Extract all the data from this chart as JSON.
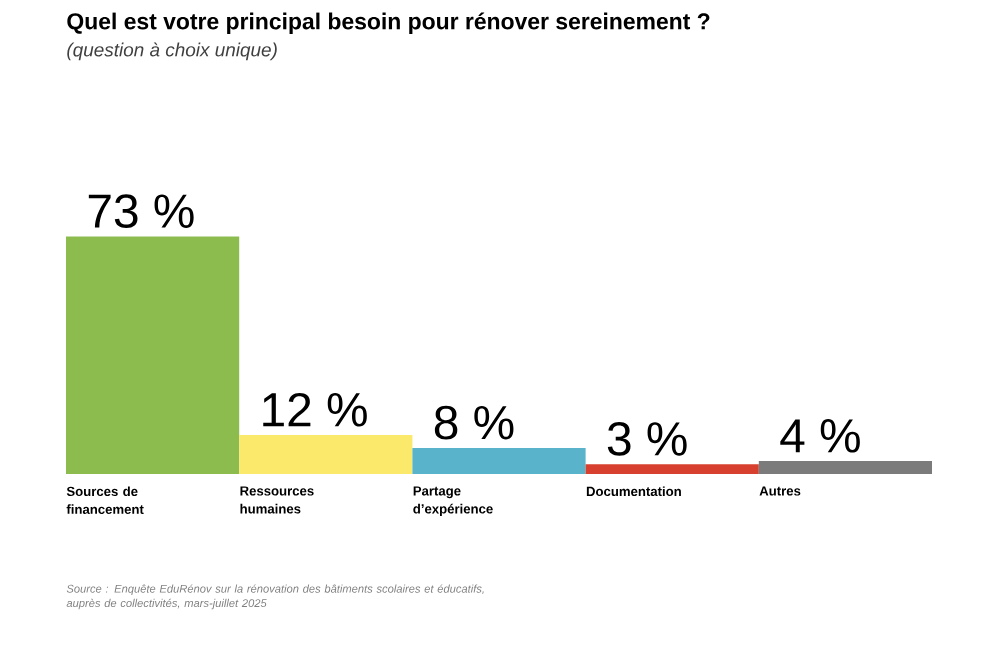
{
  "chart_data": {
    "type": "bar",
    "title": "Quel est votre principal besoin pour rénover sereinement ?",
    "subtitle": "(question à choix unique)",
    "categories": [
      "Sources de financement",
      "Ressources humaines",
      "Partage d’expérience",
      "Documentation",
      "Autres"
    ],
    "values": [
      73,
      12,
      8,
      3,
      4
    ],
    "colors": [
      "#8cbb4e",
      "#fbe96c",
      "#58b3cb",
      "#d7402f",
      "#7b7b7b"
    ],
    "value_labels": [
      "73 %",
      "12 %",
      "8 %",
      "3 %",
      "4 %"
    ],
    "annotations": [
      "Source : Enquête EduRénov sur la rénovation des bâtiments scolaires et éducatifs, auprès de collectivités, mars-juillet 2025"
    ]
  }
}
